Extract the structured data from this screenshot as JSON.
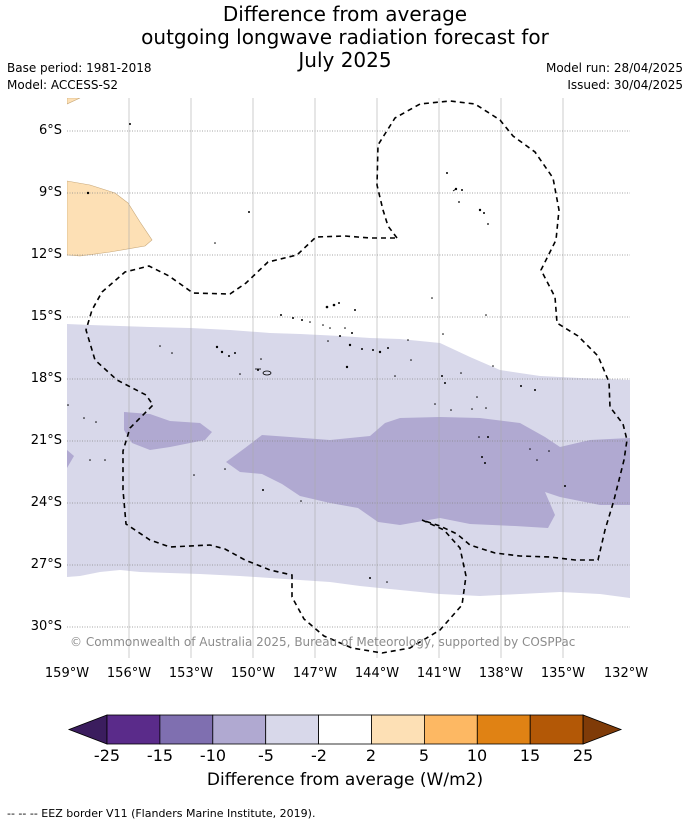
{
  "title": {
    "line1": "Difference from average",
    "line2": "outgoing longwave radiation forecast for",
    "line3": "July 2025"
  },
  "info": {
    "base_period": "Base period: 1981-2018",
    "model": "Model: ACCESS-S2",
    "model_run": "Model run: 28/04/2025",
    "issued": "Issued: 30/04/2025"
  },
  "map": {
    "lat_labels": [
      "6°S",
      "9°S",
      "12°S",
      "15°S",
      "18°S",
      "21°S",
      "24°S",
      "27°S",
      "30°S"
    ],
    "lon_labels": [
      "159°W",
      "156°W",
      "153°W",
      "150°W",
      "147°W",
      "144°W",
      "141°W",
      "138°W",
      "135°W",
      "132°W"
    ],
    "copyright": "© Commonwealth of Australia 2025, Bureau of Meteorology, supported by COSPPac"
  },
  "colorbar": {
    "title": "Difference from average (W/m2)",
    "ticks": [
      "-25",
      "-15",
      "-10",
      "-5",
      "-2",
      "2",
      "5",
      "10",
      "15",
      "25"
    ],
    "colors": [
      "#3b1d5e",
      "#5a2b8a",
      "#7f6fb0",
      "#b0a9d1",
      "#d8d8ea",
      "#ffffff",
      "#fde0b5",
      "#fdb863",
      "#e08214",
      "#b35806",
      "#7f3b08"
    ]
  },
  "footnote": "--  --  -- EEZ border V11 (Flanders Marine Institute, 2019)."
}
